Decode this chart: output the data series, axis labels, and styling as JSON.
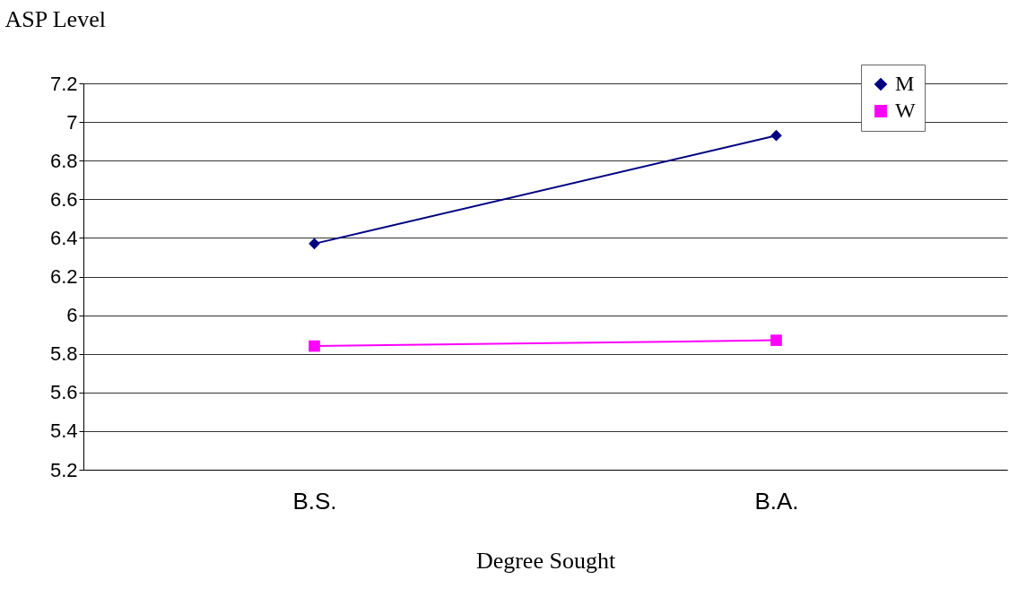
{
  "chart_data": {
    "type": "line",
    "xlabel": "Degree Sought",
    "ylabel": "ASP Level",
    "categories": [
      "B.S.",
      "B.A."
    ],
    "series": [
      {
        "name": "M",
        "color": "#000080",
        "marker": "diamond",
        "values": [
          6.37,
          6.93
        ]
      },
      {
        "name": "W",
        "color": "#ff00ff",
        "marker": "square",
        "values": [
          5.84,
          5.87
        ]
      }
    ],
    "ylim": [
      5.2,
      7.2
    ],
    "yticks": [
      5.2,
      5.4,
      5.6,
      5.8,
      6,
      6.2,
      6.4,
      6.6,
      6.8,
      7,
      7.2
    ],
    "grid": "y",
    "legend": "top right"
  }
}
